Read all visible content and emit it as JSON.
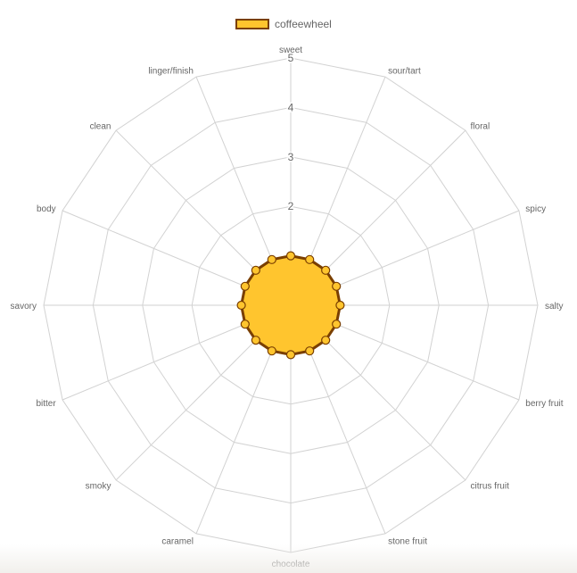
{
  "legend": {
    "label": "coffeewheel"
  },
  "colors": {
    "fill": "#ffc52e",
    "stroke": "#7a3f00",
    "point_fill": "#ffc52e",
    "point_stroke": "#7a3f00",
    "grid": "#d2d2d2",
    "text": "#666666"
  },
  "chart_data": {
    "type": "radar",
    "categories": [
      "sweet",
      "sour/tart",
      "floral",
      "spicy",
      "salty",
      "berry fruit",
      "citrus fruit",
      "stone fruit",
      "chocolate",
      "caramel",
      "smoky",
      "bitter",
      "savory",
      "body",
      "clean",
      "linger/finish"
    ],
    "series": [
      {
        "name": "coffeewheel",
        "values": [
          1,
          1,
          1,
          1,
          1,
          1,
          1,
          1,
          1,
          1,
          1,
          1,
          1,
          1,
          1,
          1
        ]
      }
    ],
    "r_ticks": [
      2,
      3,
      4,
      5
    ],
    "r_range": [
      0,
      5
    ],
    "grid": true,
    "legend_position": "top"
  }
}
